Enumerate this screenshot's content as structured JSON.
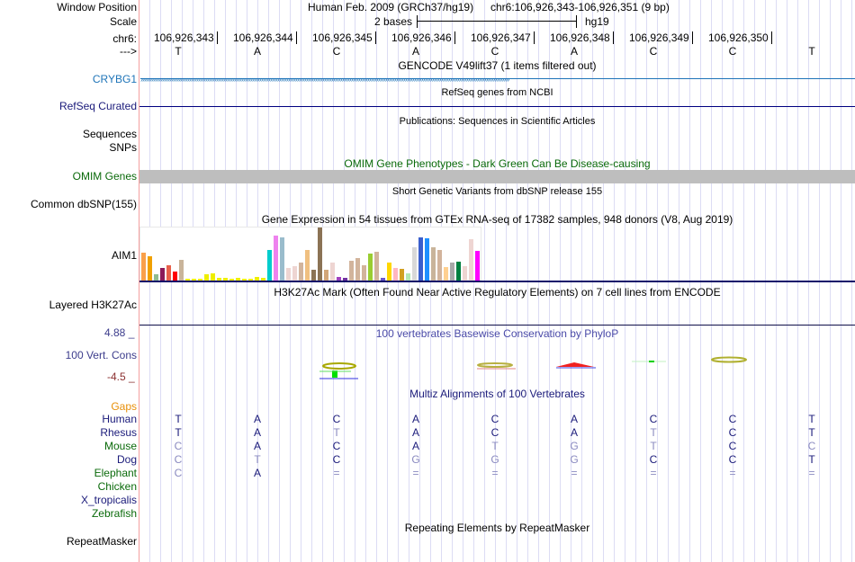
{
  "header": {
    "window_position_label": "Window Position",
    "assembly": "Human Feb. 2009 (GRCh37/hg19)",
    "position": "chr6:106,926,343-106,926,351 (9 bp)",
    "scale_label": "Scale",
    "scale_text": "2 bases",
    "scale_db": "hg19",
    "chrom_label": "chr6:",
    "strand_label": "--->"
  },
  "coords": [
    "106,926,343",
    "106,926,344",
    "106,926,345",
    "106,926,346",
    "106,926,347",
    "106,926,348",
    "106,926,349",
    "106,926,350"
  ],
  "bases": [
    "T",
    "A",
    "C",
    "A",
    "C",
    "A",
    "C",
    "C",
    "T"
  ],
  "tracks": {
    "gencode": {
      "title": "GENCODE V49lift37 (1 items filtered out)",
      "label": "CRYBG1"
    },
    "refseq": {
      "title": "RefSeq genes from NCBI",
      "label": "RefSeq Curated"
    },
    "pubs": {
      "title": "Publications: Sequences in Scientific Articles",
      "label1": "Sequences",
      "label2": "SNPs"
    },
    "omim": {
      "title": "OMIM Gene Phenotypes - Dark Green Can Be Disease-causing",
      "label": "OMIM Genes"
    },
    "dbsnp": {
      "title": "Short Genetic Variants from dbSNP release 155",
      "label": "Common dbSNP(155)"
    },
    "gtex": {
      "title": "Gene Expression in 54 tissues from GTEx RNA-seq of 17382 samples, 948 donors (V8, Aug 2019)",
      "label": "AIM1"
    },
    "h3k27ac": {
      "title": "H3K27Ac Mark (Often Found Near Active Regulatory Elements) on 7 cell lines from ENCODE",
      "label": "Layered H3K27Ac"
    },
    "phylop": {
      "title": "100 vertebrates Basewise Conservation by PhyloP",
      "label": "100 Vert. Cons",
      "max": "4.88 _",
      "min": "-4.5 _"
    },
    "multiz": {
      "title": "Multiz Alignments of 100 Vertebrates",
      "gaps_label": "Gaps",
      "species": [
        {
          "name": "Human",
          "color": "#1a1a7a",
          "seq": [
            "T",
            "A",
            "C",
            "A",
            "C",
            "A",
            "C",
            "C",
            "T"
          ]
        },
        {
          "name": "Rhesus",
          "color": "#1a1a7a",
          "seq": [
            "T",
            "A",
            "T",
            "A",
            "C",
            "A",
            "T",
            "C",
            "T"
          ]
        },
        {
          "name": "Mouse",
          "color": "#0a6a0a",
          "seq": [
            "C",
            "A",
            "C",
            "A",
            "T",
            "G",
            "T",
            "C",
            "C"
          ]
        },
        {
          "name": "Dog",
          "color": "#1a1a7a",
          "seq": [
            "C",
            "T",
            "C",
            "G",
            "G",
            "G",
            "C",
            "C",
            "T"
          ]
        },
        {
          "name": "Elephant",
          "color": "#0a6a0a",
          "seq": [
            "C",
            "A",
            "=",
            "=",
            "=",
            "=",
            "=",
            "=",
            "="
          ]
        },
        {
          "name": "Chicken",
          "color": "#0a6a0a",
          "seq": []
        },
        {
          "name": "X_tropicalis",
          "color": "#1a1a7a",
          "seq": []
        },
        {
          "name": "Zebrafish",
          "color": "#0a6a0a",
          "seq": []
        }
      ]
    },
    "rmsk": {
      "title": "Repeating Elements by RepeatMasker",
      "label": "RepeatMasker"
    }
  },
  "gtex_bars": {
    "values": [
      32,
      28,
      8,
      15,
      18,
      11,
      24,
      3,
      3,
      3,
      8,
      9,
      4,
      4,
      3,
      4,
      3,
      3,
      5,
      4,
      35,
      51,
      49,
      15,
      17,
      21,
      35,
      13,
      60,
      13,
      21,
      5,
      4,
      23,
      26,
      18,
      31,
      33,
      4,
      21,
      15,
      14,
      9,
      38,
      49,
      48,
      38,
      35,
      16,
      21,
      22,
      17,
      47,
      34
    ],
    "colors": [
      "#f9a04a",
      "#f0a000",
      "#8fbc8f",
      "#8b1a5a",
      "#e8604a",
      "#ff0000",
      "#c9b49a",
      "#eeee00",
      "#eeee00",
      "#eeee00",
      "#eeee00",
      "#eeee00",
      "#eeee00",
      "#eeee00",
      "#eeee00",
      "#eeee00",
      "#eeee00",
      "#eeee00",
      "#eeee00",
      "#eeee00",
      "#00cdcd",
      "#ee82ee",
      "#9abccc",
      "#eed5d2",
      "#eed5d2",
      "#d2b49c",
      "#f0c080",
      "#8b7355",
      "#8b7355",
      "#d2a679",
      "#eed5d2",
      "#a040c0",
      "#7030a0",
      "#d2b49c",
      "#d2b49c",
      "#d2b49c",
      "#9acd32",
      "#d2b49c",
      "#6a5acd",
      "#ffd700",
      "#ffb6c1",
      "#d2a020",
      "#b4e8b4",
      "#d8d8d8",
      "#3a5fcd",
      "#1e90ff",
      "#c9b49a",
      "#d2b49c",
      "#ffd090",
      "#a8a8a8",
      "#008040",
      "#eed5d2",
      "#eed5d2",
      "#ff00ff"
    ]
  }
}
